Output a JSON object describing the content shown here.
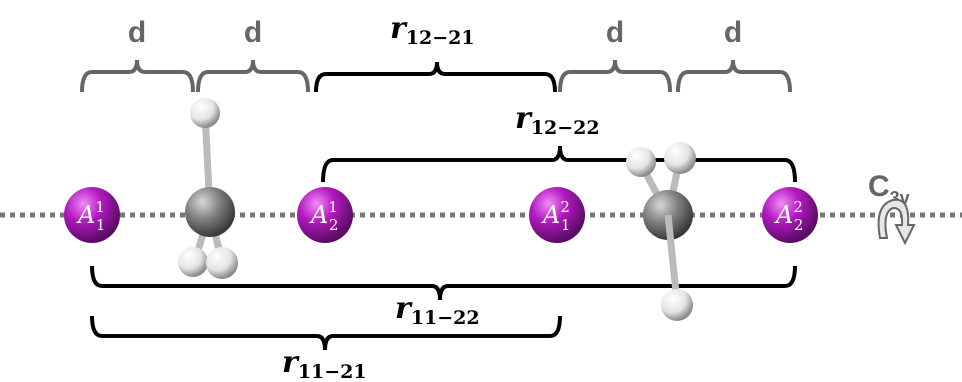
{
  "spacings": [
    {
      "label": "d"
    },
    {
      "label": "d"
    },
    {
      "label": "d"
    },
    {
      "label": "d"
    }
  ],
  "distances": [
    {
      "symbol": "r",
      "sub": "12−21"
    },
    {
      "symbol": "r",
      "sub": "12−22"
    },
    {
      "symbol": "r",
      "sub": "11−22"
    },
    {
      "symbol": "r",
      "sub": "11−21"
    }
  ],
  "atoms": [
    {
      "symbol": "A",
      "sup": "1",
      "sub": "1"
    },
    {
      "symbol": "A",
      "sup": "1",
      "sub": "2"
    },
    {
      "symbol": "A",
      "sup": "2",
      "sub": "1"
    },
    {
      "symbol": "A",
      "sup": "2",
      "sub": "2"
    }
  ],
  "symmetry": {
    "symbol": "C",
    "sub": "3v"
  }
}
